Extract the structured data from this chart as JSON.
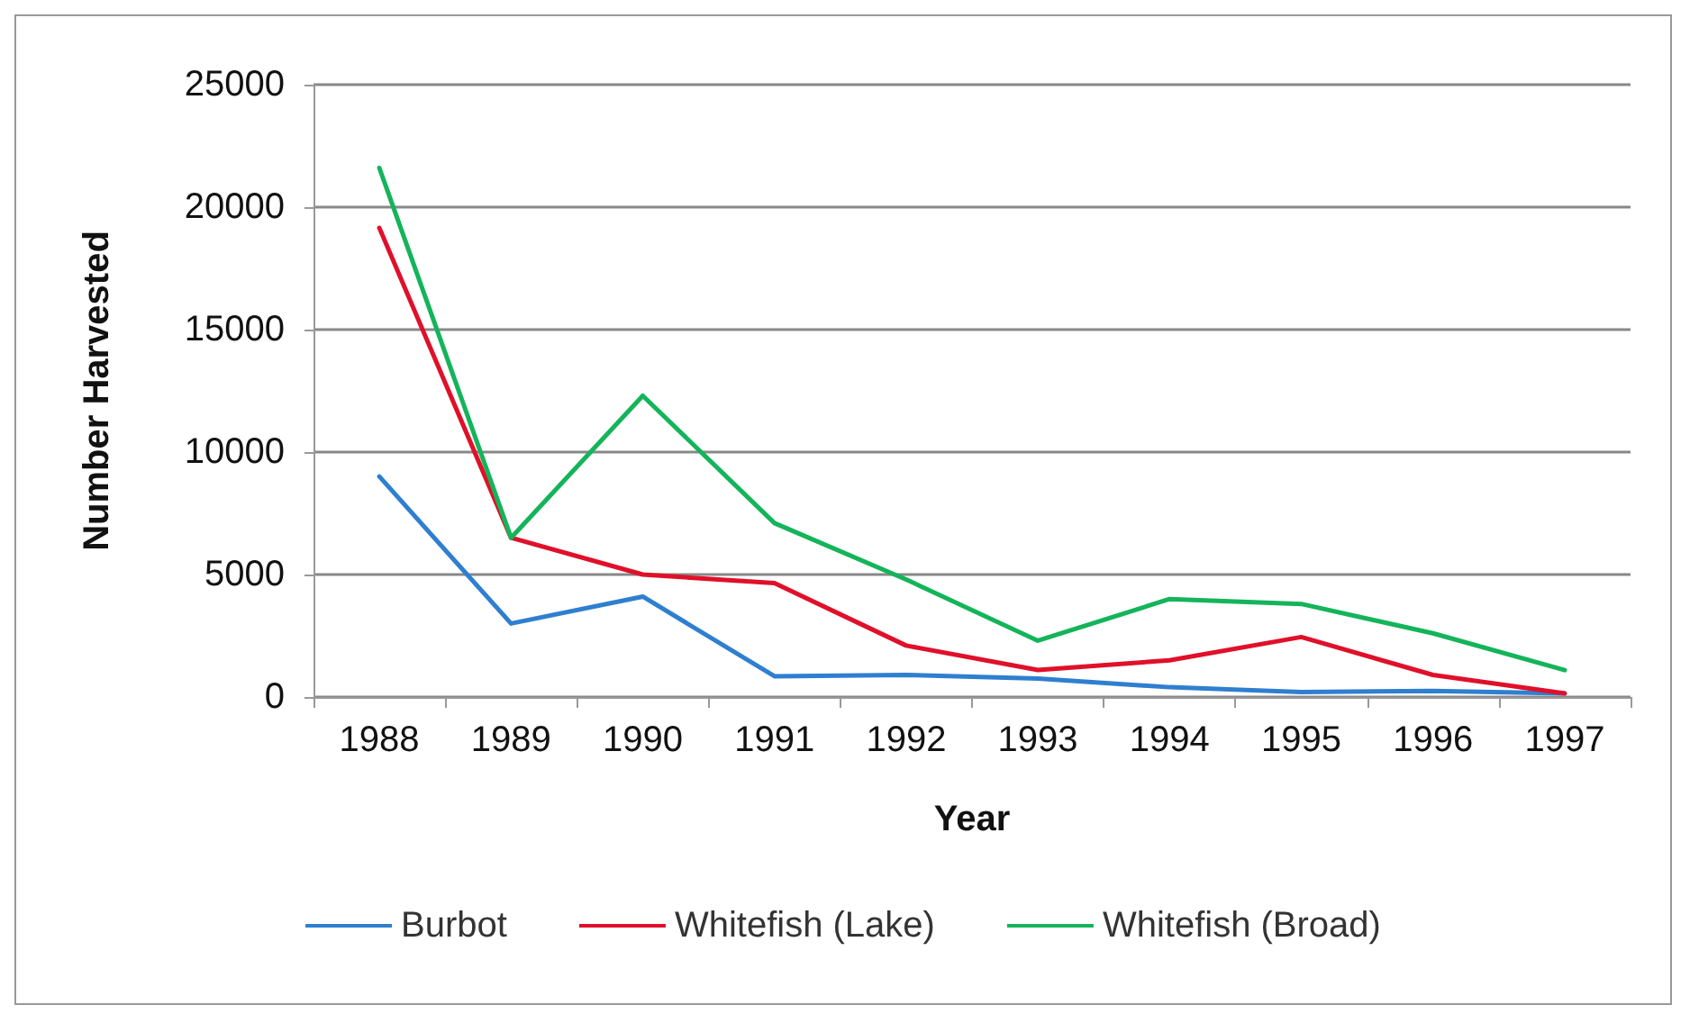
{
  "chart_data": {
    "type": "line",
    "xlabel": "Year",
    "ylabel": "Number Harvested",
    "categories": [
      "1988",
      "1989",
      "1990",
      "1991",
      "1992",
      "1993",
      "1994",
      "1995",
      "1996",
      "1997"
    ],
    "series": [
      {
        "name": "Burbot",
        "color": "#2f7fd0",
        "values": [
          9000,
          3000,
          4100,
          850,
          900,
          750,
          400,
          200,
          250,
          150
        ]
      },
      {
        "name": "Whitefish (Lake)",
        "color": "#e0102a",
        "values": [
          19150,
          6500,
          5000,
          4650,
          2100,
          1100,
          1500,
          2450,
          900,
          150
        ]
      },
      {
        "name": "Whitefish (Broad)",
        "color": "#14b45a",
        "values": [
          21600,
          6500,
          12300,
          7100,
          4800,
          2300,
          4000,
          3800,
          2600,
          1100
        ]
      }
    ],
    "ylim": [
      0,
      25000
    ],
    "yticks": [
      0,
      5000,
      10000,
      15000,
      20000,
      25000
    ],
    "grid": "y",
    "legend": "bottom",
    "marker": "none"
  }
}
